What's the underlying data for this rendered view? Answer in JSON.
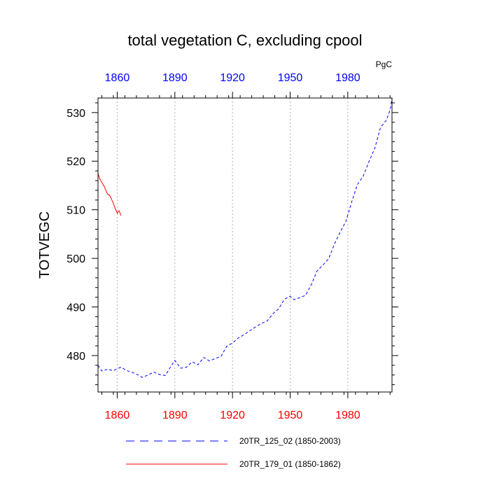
{
  "chart_data": {
    "type": "line",
    "title": "total vegetation C, excluding cpool",
    "ylabel": "TOTVEGC",
    "units": "PgC",
    "xlim": [
      1850,
      2003
    ],
    "ylim": [
      472.5,
      533
    ],
    "xticks": [
      1860,
      1890,
      1920,
      1950,
      1980
    ],
    "yticks": [
      480,
      490,
      500,
      510,
      520,
      530
    ],
    "top_axis_color": "#0000ff",
    "bottom_axis_color": "#ff0000",
    "grid": "vertical dotted at major x ticks",
    "series": [
      {
        "name": "20TR_125_02 (1850-2003)",
        "color": "#0000ff",
        "style": "dashed",
        "x": [
          1850,
          1852,
          1855,
          1858,
          1860,
          1862,
          1865,
          1868,
          1871,
          1873,
          1876,
          1879,
          1882,
          1885,
          1888,
          1890,
          1893,
          1896,
          1899,
          1902,
          1905,
          1908,
          1911,
          1914,
          1917,
          1920,
          1923,
          1926,
          1929,
          1932,
          1935,
          1938,
          1941,
          1944,
          1947,
          1950,
          1952,
          1955,
          1958,
          1961,
          1964,
          1967,
          1970,
          1973,
          1976,
          1979,
          1982,
          1985,
          1988,
          1991,
          1994,
          1997,
          2000,
          2002,
          2003
        ],
        "values": [
          478.0,
          476.8,
          477.2,
          476.9,
          477.3,
          477.6,
          476.9,
          476.5,
          476.0,
          475.5,
          476.0,
          476.6,
          476.1,
          475.9,
          477.8,
          479.0,
          477.4,
          477.6,
          478.7,
          478.1,
          479.6,
          478.9,
          479.4,
          479.8,
          481.9,
          482.6,
          483.6,
          484.3,
          485.1,
          485.9,
          486.6,
          487.1,
          488.6,
          489.6,
          491.6,
          492.2,
          491.5,
          491.9,
          492.4,
          494.6,
          497.4,
          498.6,
          499.9,
          502.9,
          505.4,
          507.6,
          511.6,
          515.2,
          516.9,
          519.9,
          522.6,
          526.9,
          528.4,
          530.5,
          533.0
        ]
      },
      {
        "name": "20TR_179_01 (1850-1862)",
        "color": "#ff0000",
        "style": "solid",
        "x": [
          1850,
          1851,
          1852,
          1853,
          1854,
          1855,
          1856,
          1857,
          1858,
          1859,
          1860,
          1861,
          1862
        ],
        "values": [
          517.5,
          516.3,
          515.6,
          515.0,
          514.1,
          513.2,
          513.0,
          512.2,
          511.3,
          510.2,
          509.3,
          509.8,
          508.8
        ]
      }
    ],
    "legend": {
      "placement": "bottom-center",
      "entries": [
        "20TR_125_02 (1850-2003)",
        "20TR_179_01 (1850-1862)"
      ]
    }
  }
}
